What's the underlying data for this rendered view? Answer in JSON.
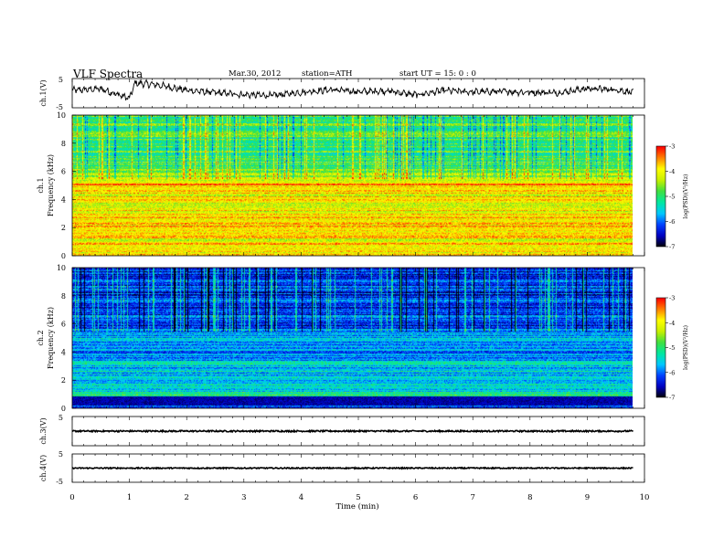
{
  "header": {
    "title": "VLF  Spectra",
    "date": "Mar.30, 2012",
    "station": "station=ATH",
    "start_ut": "start  UT  =    15: 0   : 0"
  },
  "colors": {
    "axis": "#000000",
    "trace": "#000000",
    "colormap": [
      "#000000",
      "#0000c0",
      "#0040ff",
      "#00c8ff",
      "#00e8a0",
      "#40e040",
      "#c8f000",
      "#ffff00",
      "#ff8000",
      "#ff0000",
      "#ffffff"
    ]
  },
  "chart_data": [
    {
      "type": "line",
      "panel": "ch1-waveform",
      "ylabel": "ch.1(V)",
      "yticks": [
        "5",
        "-5"
      ],
      "ylim": [
        -5,
        5
      ],
      "x": [
        0,
        0.5,
        1,
        1.1,
        1.5,
        2,
        2.5,
        3,
        3.5,
        4,
        4.5,
        5,
        5.5,
        6,
        6.5,
        7,
        7.5,
        8,
        8.5,
        9,
        9.5,
        9.8
      ],
      "y": [
        1.0,
        1.5,
        -1.8,
        3.5,
        2.8,
        1.0,
        0.2,
        -0.5,
        -0.8,
        0.3,
        1.2,
        0.5,
        0.8,
        -0.6,
        0.9,
        0.4,
        0.6,
        0.3,
        0.2,
        1.6,
        1.2,
        0.2
      ]
    },
    {
      "type": "heatmap",
      "panel": "ch1-spectrogram",
      "ylabel_channel": "ch.1",
      "ylabel": "Frequency  (kHz)",
      "yticks": [
        "10",
        "8",
        "6",
        "4",
        "2",
        "0"
      ],
      "ylim": [
        0,
        10
      ],
      "xlim": [
        0,
        9.8
      ],
      "colorbar": {
        "label": "log(PSD)(V²/Hz)",
        "ticks": [
          "-3",
          "-4",
          "-5",
          "-6",
          "-7"
        ],
        "range": [
          -7,
          -3
        ]
      },
      "frequency_kHz": [
        0,
        1,
        2,
        3,
        4,
        5,
        6,
        7,
        8,
        9,
        10
      ],
      "mean_log_psd": [
        -3.8,
        -3.9,
        -3.8,
        -3.9,
        -4.1,
        -3.6,
        -4.7,
        -4.9,
        -4.9,
        -4.9,
        -5.0
      ]
    },
    {
      "type": "heatmap",
      "panel": "ch2-spectrogram",
      "ylabel_channel": "ch.2",
      "ylabel": "Frequency  (kHz)",
      "yticks": [
        "10",
        "8",
        "6",
        "4",
        "2",
        "0"
      ],
      "ylim": [
        0,
        10
      ],
      "xlim": [
        0,
        9.8
      ],
      "colorbar": {
        "label": "log(PSD)(V²/Hz)",
        "ticks": [
          "-3",
          "-4",
          "-5",
          "-6",
          "-7"
        ],
        "range": [
          -7,
          -3
        ]
      },
      "frequency_kHz": [
        0,
        1,
        2,
        3,
        4,
        5,
        6,
        7,
        8,
        9,
        10
      ],
      "mean_log_psd": [
        -6.6,
        -5.2,
        -5.6,
        -5.5,
        -5.9,
        -5.7,
        -6.2,
        -6.1,
        -6.3,
        -6.1,
        -6.4
      ]
    },
    {
      "type": "line",
      "panel": "ch3-waveform",
      "ylabel": "ch.3(V)",
      "yticks": [
        "5"
      ],
      "ylim": [
        -5,
        5
      ],
      "x": [
        0,
        9.8
      ],
      "y": [
        0,
        0
      ]
    },
    {
      "type": "line",
      "panel": "ch4-waveform",
      "ylabel": "ch.4(V)",
      "yticks": [
        "5",
        "-5"
      ],
      "ylim": [
        -5,
        5
      ],
      "x": [
        0,
        9.8
      ],
      "y": [
        0,
        0
      ]
    }
  ],
  "xaxis": {
    "label": "Time  (min)",
    "ticks": [
      "0",
      "1",
      "2",
      "3",
      "4",
      "5",
      "6",
      "7",
      "8",
      "9",
      "10"
    ],
    "range": [
      0,
      10
    ]
  }
}
